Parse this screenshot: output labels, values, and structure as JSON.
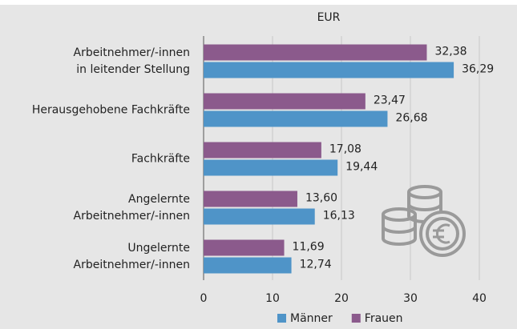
{
  "chart_data": {
    "type": "bar",
    "orientation": "horizontal",
    "title": "EUR",
    "categories": [
      "Arbeitnehmer/-innen\nin leitender Stellung",
      "Herausgehobene Fachkräfte",
      "Fachkräfte",
      "Angelernte\nArbeitnehmer/-innen",
      "Ungelernte\nArbeitnehmer/-innen"
    ],
    "series": [
      {
        "name": "Männer",
        "color": "#4f94c8",
        "values": [
          36.29,
          26.68,
          19.44,
          16.13,
          12.74
        ],
        "value_labels": [
          "36,29",
          "26,68",
          "19,44",
          "16,13",
          "12,74"
        ]
      },
      {
        "name": "Frauen",
        "color": "#8b5a8c",
        "values": [
          32.38,
          23.47,
          17.08,
          13.6,
          11.69
        ],
        "value_labels": [
          "32,38",
          "23,47",
          "17,08",
          "13,60",
          "11,69"
        ]
      }
    ],
    "xlim": [
      0,
      40
    ],
    "xticks": [
      0,
      10,
      20,
      30,
      40
    ],
    "grid": true,
    "legend": "bottom"
  }
}
